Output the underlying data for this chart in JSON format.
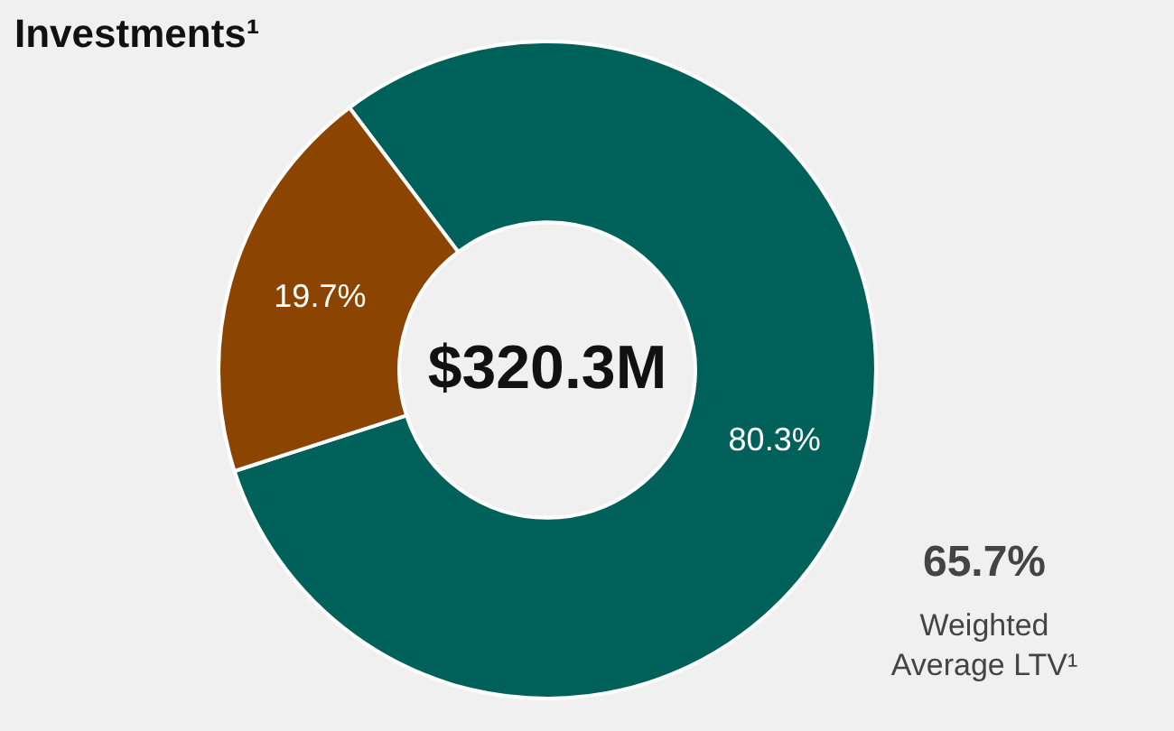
{
  "chart_data": {
    "type": "donut",
    "title": "Investments¹",
    "categories": [
      null,
      null
    ],
    "values": [
      80.3,
      19.7
    ],
    "colors": [
      "#00605a",
      "#8b4500"
    ],
    "value_labels": [
      "80.3%",
      "19.7%"
    ],
    "legend": false,
    "annotations": [
      "$320.3M",
      "65.7%",
      "Weighted Average LTV¹"
    ]
  }
}
